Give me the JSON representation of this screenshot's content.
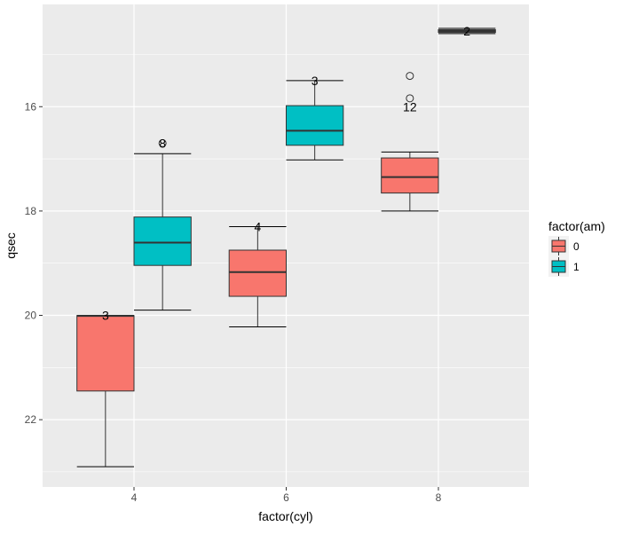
{
  "chart_data": {
    "type": "boxplot",
    "xlabel": "factor(cyl)",
    "ylabel": "qsec",
    "y_reversed": true,
    "ylim": [
      14.04,
      23.29
    ],
    "yticks": [
      16,
      18,
      20,
      22
    ],
    "categories": [
      "4",
      "6",
      "8"
    ],
    "grid": true,
    "legend": {
      "title": "factor(am)",
      "position": "right",
      "entries": [
        {
          "label": "0",
          "color": "#F8766D"
        },
        {
          "label": "1",
          "color": "#00BFC4"
        }
      ]
    },
    "boxes": [
      {
        "cyl": "4",
        "am": "0",
        "min": 20.0,
        "q1": 20.005,
        "median": 20.01,
        "q3": 21.45,
        "max": 22.9,
        "outliers": [],
        "label": "3",
        "label_y": 20.0
      },
      {
        "cyl": "4",
        "am": "1",
        "min": 16.9,
        "q1": 18.115,
        "median": 18.605,
        "q3": 19.0425,
        "max": 19.9,
        "outliers": [
          16.7
        ],
        "label": "8",
        "label_y": 16.7
      },
      {
        "cyl": "6",
        "am": "0",
        "min": 18.3,
        "q1": 18.75,
        "median": 19.17,
        "q3": 19.635,
        "max": 20.22,
        "outliers": [],
        "label": "4",
        "label_y": 18.3
      },
      {
        "cyl": "6",
        "am": "1",
        "min": 15.5,
        "q1": 15.98,
        "median": 16.46,
        "q3": 16.74,
        "max": 17.02,
        "outliers": [],
        "label": "3",
        "label_y": 15.5
      },
      {
        "cyl": "8",
        "am": "0",
        "min": 16.87,
        "q1": 16.9825,
        "median": 17.35,
        "q3": 17.655,
        "max": 18.0,
        "outliers": [
          15.41,
          15.84
        ],
        "label": "12",
        "label_y": 16.0
      },
      {
        "cyl": "8",
        "am": "1",
        "min": 14.5,
        "q1": 14.525,
        "median": 14.55,
        "q3": 14.575,
        "max": 14.6,
        "outliers": [],
        "label": "2",
        "label_y": 14.55
      }
    ]
  }
}
